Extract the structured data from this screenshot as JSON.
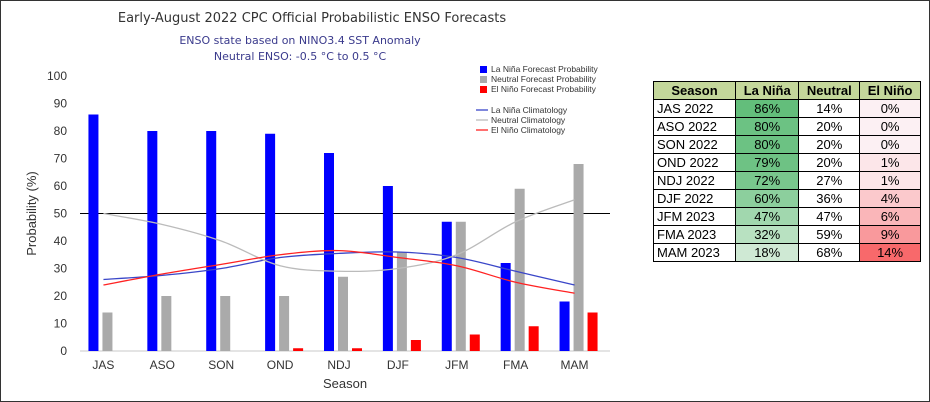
{
  "chart_data": {
    "type": "bar",
    "title": "Early-August 2022 CPC Official Probabilistic ENSO Forecasts",
    "subtitle_lines": [
      "ENSO state based on NINO3.4 SST Anomaly",
      "Neutral ENSO: -0.5 °C to 0.5 °C"
    ],
    "xlabel": "Season",
    "ylabel": "Probability (%)",
    "ylim": [
      0,
      100
    ],
    "yticks": [
      0,
      10,
      20,
      30,
      40,
      50,
      60,
      70,
      80,
      90,
      100
    ],
    "reference_line": 50,
    "categories": [
      "JAS",
      "ASO",
      "SON",
      "OND",
      "NDJ",
      "DJF",
      "JFM",
      "FMA",
      "MAM"
    ],
    "series": [
      {
        "name": "La Niña Forecast Probability",
        "color": "#0000ff",
        "values": [
          86,
          80,
          80,
          79,
          72,
          60,
          47,
          32,
          18
        ]
      },
      {
        "name": "Neutral Forecast Probability",
        "color": "#aaaaaa",
        "values": [
          14,
          20,
          20,
          20,
          27,
          36,
          47,
          59,
          68
        ]
      },
      {
        "name": "El Niño Forecast Probability",
        "color": "#ff0000",
        "values": [
          0,
          0,
          0,
          1,
          1,
          4,
          6,
          9,
          14
        ]
      }
    ],
    "climatology": [
      {
        "name": "La Niña Climatology",
        "color": "#3a46c8",
        "values": [
          26,
          27.5,
          30,
          34,
          35.5,
          36,
          34,
          29,
          24
        ]
      },
      {
        "name": "Neutral Climatology",
        "color": "#bbbbbb",
        "values": [
          50,
          46,
          40,
          31,
          29,
          30,
          35,
          47,
          55
        ]
      },
      {
        "name": "El Niño Climatology",
        "color": "#ff2222",
        "values": [
          24,
          28,
          31.5,
          35,
          36.5,
          34,
          31,
          25,
          21
        ]
      }
    ]
  },
  "table": {
    "headers": [
      "Season",
      "La Niña",
      "Neutral",
      "El Niño"
    ],
    "rows": [
      {
        "season": "JAS 2022",
        "la_nina": "86%",
        "neutral": "14%",
        "el_nino": "0%"
      },
      {
        "season": "ASO 2022",
        "la_nina": "80%",
        "neutral": "20%",
        "el_nino": "0%"
      },
      {
        "season": "SON 2022",
        "la_nina": "80%",
        "neutral": "20%",
        "el_nino": "0%"
      },
      {
        "season": "OND 2022",
        "la_nina": "79%",
        "neutral": "20%",
        "el_nino": "1%"
      },
      {
        "season": "NDJ 2022",
        "la_nina": "72%",
        "neutral": "27%",
        "el_nino": "1%"
      },
      {
        "season": "DJF 2022",
        "la_nina": "60%",
        "neutral": "36%",
        "el_nino": "4%"
      },
      {
        "season": "JFM 2023",
        "la_nina": "47%",
        "neutral": "47%",
        "el_nino": "6%"
      },
      {
        "season": "FMA 2023",
        "la_nina": "32%",
        "neutral": "59%",
        "el_nino": "9%"
      },
      {
        "season": "MAM 2023",
        "la_nina": "18%",
        "neutral": "68%",
        "el_nino": "14%"
      }
    ]
  }
}
